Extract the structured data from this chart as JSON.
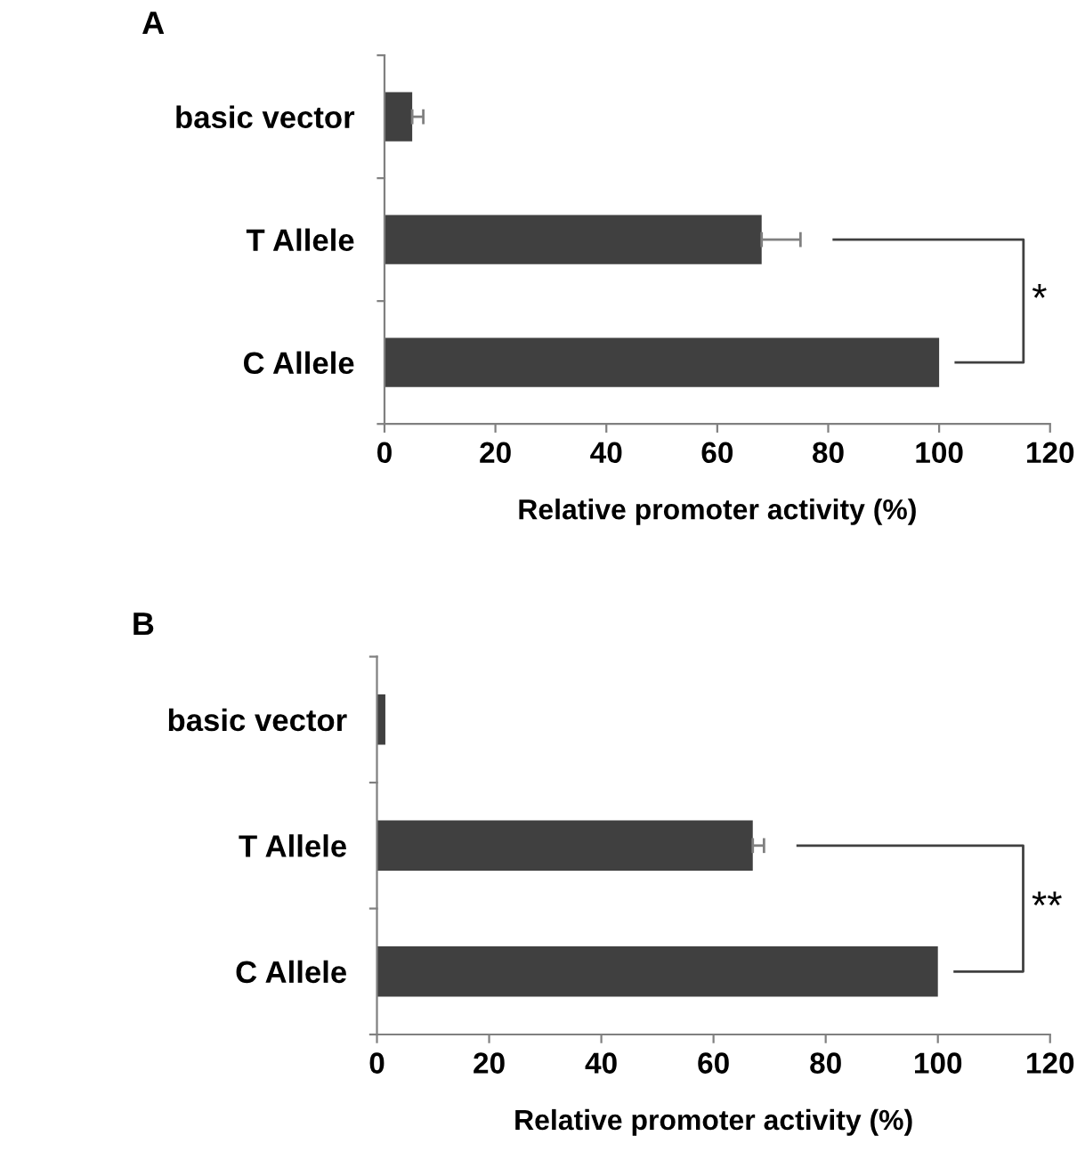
{
  "chart_data": [
    {
      "type": "bar",
      "orientation": "horizontal",
      "title": "A",
      "categories": [
        "basic vector",
        "T Allele",
        "C Allele"
      ],
      "values": [
        5,
        68,
        100
      ],
      "errors": [
        2,
        7,
        null
      ],
      "color": "#404040",
      "xlim": [
        0,
        120
      ],
      "xticks": [
        0,
        20,
        40,
        60,
        80,
        100,
        120
      ],
      "xlabel": "Relative promoter activity (%)",
      "annotations": [
        "*"
      ]
    },
    {
      "type": "bar",
      "orientation": "horizontal",
      "title": "B",
      "categories": [
        "basic vector",
        "T Allele",
        "C Allele"
      ],
      "values": [
        1.5,
        67,
        100
      ],
      "errors": [
        null,
        2,
        null
      ],
      "color": "#404040",
      "xlim": [
        0,
        120
      ],
      "xticks": [
        0,
        20,
        40,
        60,
        80,
        100,
        120
      ],
      "xlabel": "Relative promoter activity (%)",
      "annotations": [
        "**"
      ]
    }
  ]
}
